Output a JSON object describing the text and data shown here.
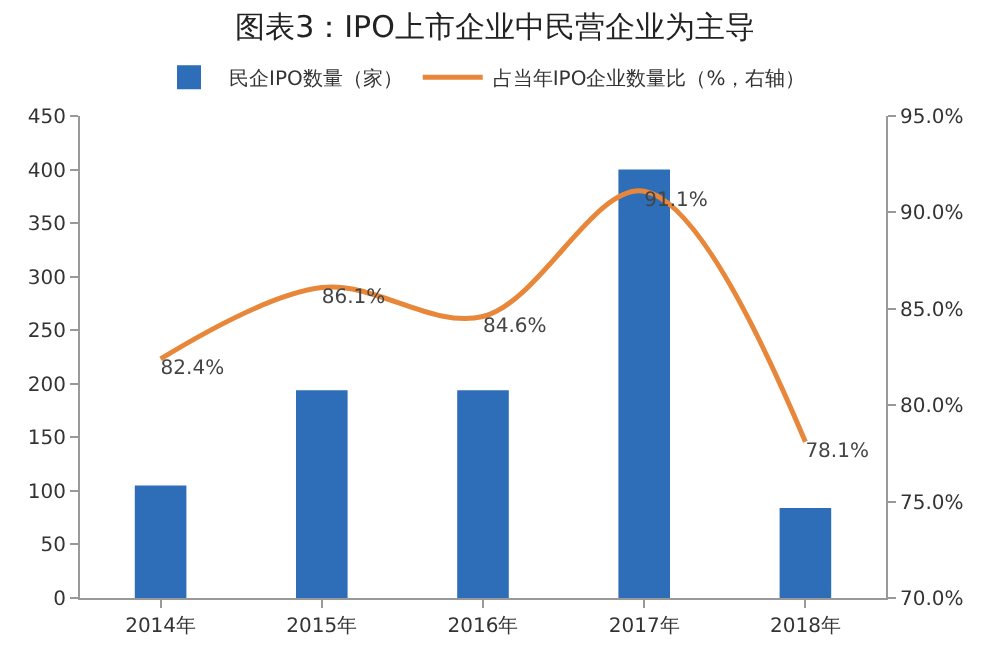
{
  "chart_data": {
    "type": "bar",
    "title": "图表3：IPO上市企业中民营企业为主导",
    "categories": [
      "2014年",
      "2015年",
      "2016年",
      "2017年",
      "2018年"
    ],
    "series": [
      {
        "name": "民企IPO数量（家）",
        "color": "#2e6db8",
        "values": [
          105,
          194,
          194,
          400,
          84
        ]
      },
      {
        "name": "占当年IPO企业数量比（%，右轴）",
        "type": "line",
        "axis": "y2",
        "color": "#e8873a",
        "values": [
          82.4,
          86.1,
          84.6,
          91.1,
          78.1
        ],
        "value_labels": [
          "82.4%",
          "86.1%",
          "84.6%",
          "91.1%",
          "78.1%"
        ]
      }
    ],
    "ylim": [
      0,
      450
    ],
    "yticks": [
      0,
      50,
      100,
      150,
      200,
      250,
      300,
      350,
      400,
      450
    ],
    "y2lim": [
      70,
      95
    ],
    "y2ticks": [
      {
        "value": 70,
        "label": "70.0%"
      },
      {
        "value": 75,
        "label": "75.0%"
      },
      {
        "value": 80,
        "label": "80.0%"
      },
      {
        "value": 85,
        "label": "85.0%"
      },
      {
        "value": 90,
        "label": "90.0%"
      },
      {
        "value": 95,
        "label": "95.0%"
      }
    ],
    "legend": "top",
    "grid": false
  }
}
